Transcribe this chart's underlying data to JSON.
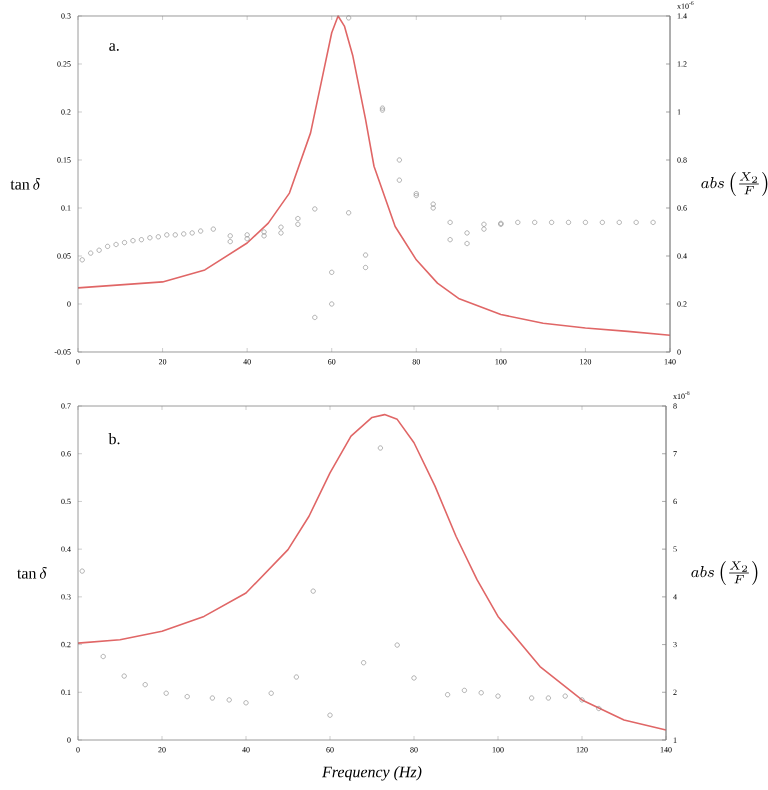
{
  "chart_data": [
    {
      "type": "scatter",
      "title": "a.",
      "ylabel": "\\tan\\delta",
      "y2label": "abs\\left(\\frac{X_2}{F}\\right)",
      "annotations": [
        "x10$^{-6}$"
      ],
      "xlim": [
        0,
        140
      ],
      "xticks": [
        0,
        20,
        40,
        60,
        80,
        100,
        120,
        140
      ],
      "ylim": [
        -0.05,
        0.3
      ],
      "yticks": [
        -0.05,
        0,
        0.05,
        0.1,
        0.15,
        0.2,
        0.25,
        0.3
      ],
      "y2lim": [
        0,
        1.4
      ],
      "y2ticks": [
        0,
        0.2,
        0.4,
        0.6,
        0.8,
        1,
        1.2,
        1.4
      ],
      "series": [
        {
          "marker": "circle",
          "color": "#808080",
          "x": [
            1,
            3,
            5,
            7,
            9,
            11,
            13,
            15,
            17,
            19,
            21,
            23,
            25,
            27,
            29,
            32,
            36,
            36,
            40,
            40,
            44,
            44,
            48,
            48,
            52,
            52,
            56,
            56,
            60,
            60,
            64,
            64,
            68,
            68,
            72,
            72,
            76,
            76,
            80,
            80,
            84,
            84,
            88,
            88,
            92,
            92,
            96,
            96,
            100,
            100,
            104,
            108,
            112,
            116,
            120,
            124,
            128,
            132,
            136
          ],
          "values": [
            0.046,
            0.053,
            0.056,
            0.06,
            0.062,
            0.064,
            0.066,
            0.067,
            0.069,
            0.07,
            0.072,
            0.072,
            0.073,
            0.074,
            0.076,
            0.078,
            0.071,
            0.065,
            0.072,
            0.068,
            0.075,
            0.071,
            0.08,
            0.074,
            0.089,
            0.083,
            0.099,
            -0.014,
            0.033,
            0,
            0.095,
            0.298,
            0.051,
            0.038,
            0.204,
            0.202,
            0.15,
            0.129,
            0.115,
            0.113,
            0.104,
            0.1,
            0.085,
            0.067,
            0.074,
            0.063,
            0.083,
            0.078,
            0.084,
            0.083,
            0.085,
            0.085,
            0.085,
            0.085,
            0.085,
            0.085,
            0.085,
            0.085,
            0.085
          ]
        },
        {
          "type": "line",
          "axis": "y2",
          "color": "#e06666",
          "x": [
            0,
            20,
            30,
            40,
            45,
            50,
            55,
            58,
            60,
            61.5,
            63,
            65,
            68,
            70,
            75,
            80,
            85,
            90,
            100,
            110,
            120,
            130,
            140
          ],
          "values": [
            0.267,
            0.292,
            0.342,
            0.454,
            0.537,
            0.662,
            0.913,
            1.163,
            1.33,
            1.4,
            1.358,
            1.233,
            0.969,
            0.774,
            0.523,
            0.384,
            0.287,
            0.223,
            0.156,
            0.12,
            0.1,
            0.086,
            0.07
          ]
        }
      ]
    },
    {
      "type": "scatter",
      "title": "b.",
      "xlabel": "Frequency (Hz)",
      "ylabel": "\\tan\\delta",
      "y2label": "abs\\left(\\frac{X_2}{F}\\right)",
      "annotations": [
        "x10$^{-8}$"
      ],
      "xlim": [
        0,
        140
      ],
      "xticks": [
        0,
        20,
        40,
        60,
        80,
        100,
        120,
        140
      ],
      "ylim": [
        0,
        0.7
      ],
      "yticks": [
        0,
        0.1,
        0.2,
        0.3,
        0.4,
        0.5,
        0.6,
        0.7
      ],
      "y2lim": [
        1,
        8
      ],
      "y2ticks": [
        1,
        2,
        3,
        4,
        5,
        6,
        7,
        8
      ],
      "series": [
        {
          "marker": "circle",
          "color": "#808080",
          "x": [
            1,
            6,
            11,
            16,
            21,
            26,
            32,
            36,
            40,
            46,
            52,
            56,
            60,
            68,
            72,
            76,
            80,
            88,
            92,
            96,
            100,
            108,
            112,
            116,
            120,
            124
          ],
          "values": [
            0.354,
            0.175,
            0.134,
            0.116,
            0.098,
            0.091,
            0.088,
            0.084,
            0.078,
            0.098,
            0.132,
            0.312,
            0.052,
            0.162,
            0.612,
            0.199,
            0.13,
            0.095,
            0.104,
            0.099,
            0.092,
            0.088,
            0.088,
            0.092,
            0.084,
            0.066
          ]
        },
        {
          "type": "line",
          "axis": "y2",
          "color": "#e06666",
          "x": [
            0,
            10,
            20,
            30,
            40,
            50,
            55,
            60,
            65,
            70,
            73,
            76,
            80,
            85,
            90,
            95,
            100,
            110,
            120,
            130,
            140
          ],
          "values": [
            3.03,
            3.1,
            3.28,
            3.59,
            4.08,
            4.99,
            5.69,
            6.6,
            7.37,
            7.76,
            7.82,
            7.72,
            7.23,
            6.32,
            5.27,
            4.36,
            3.59,
            2.54,
            1.84,
            1.42,
            1.21
          ]
        }
      ]
    }
  ]
}
